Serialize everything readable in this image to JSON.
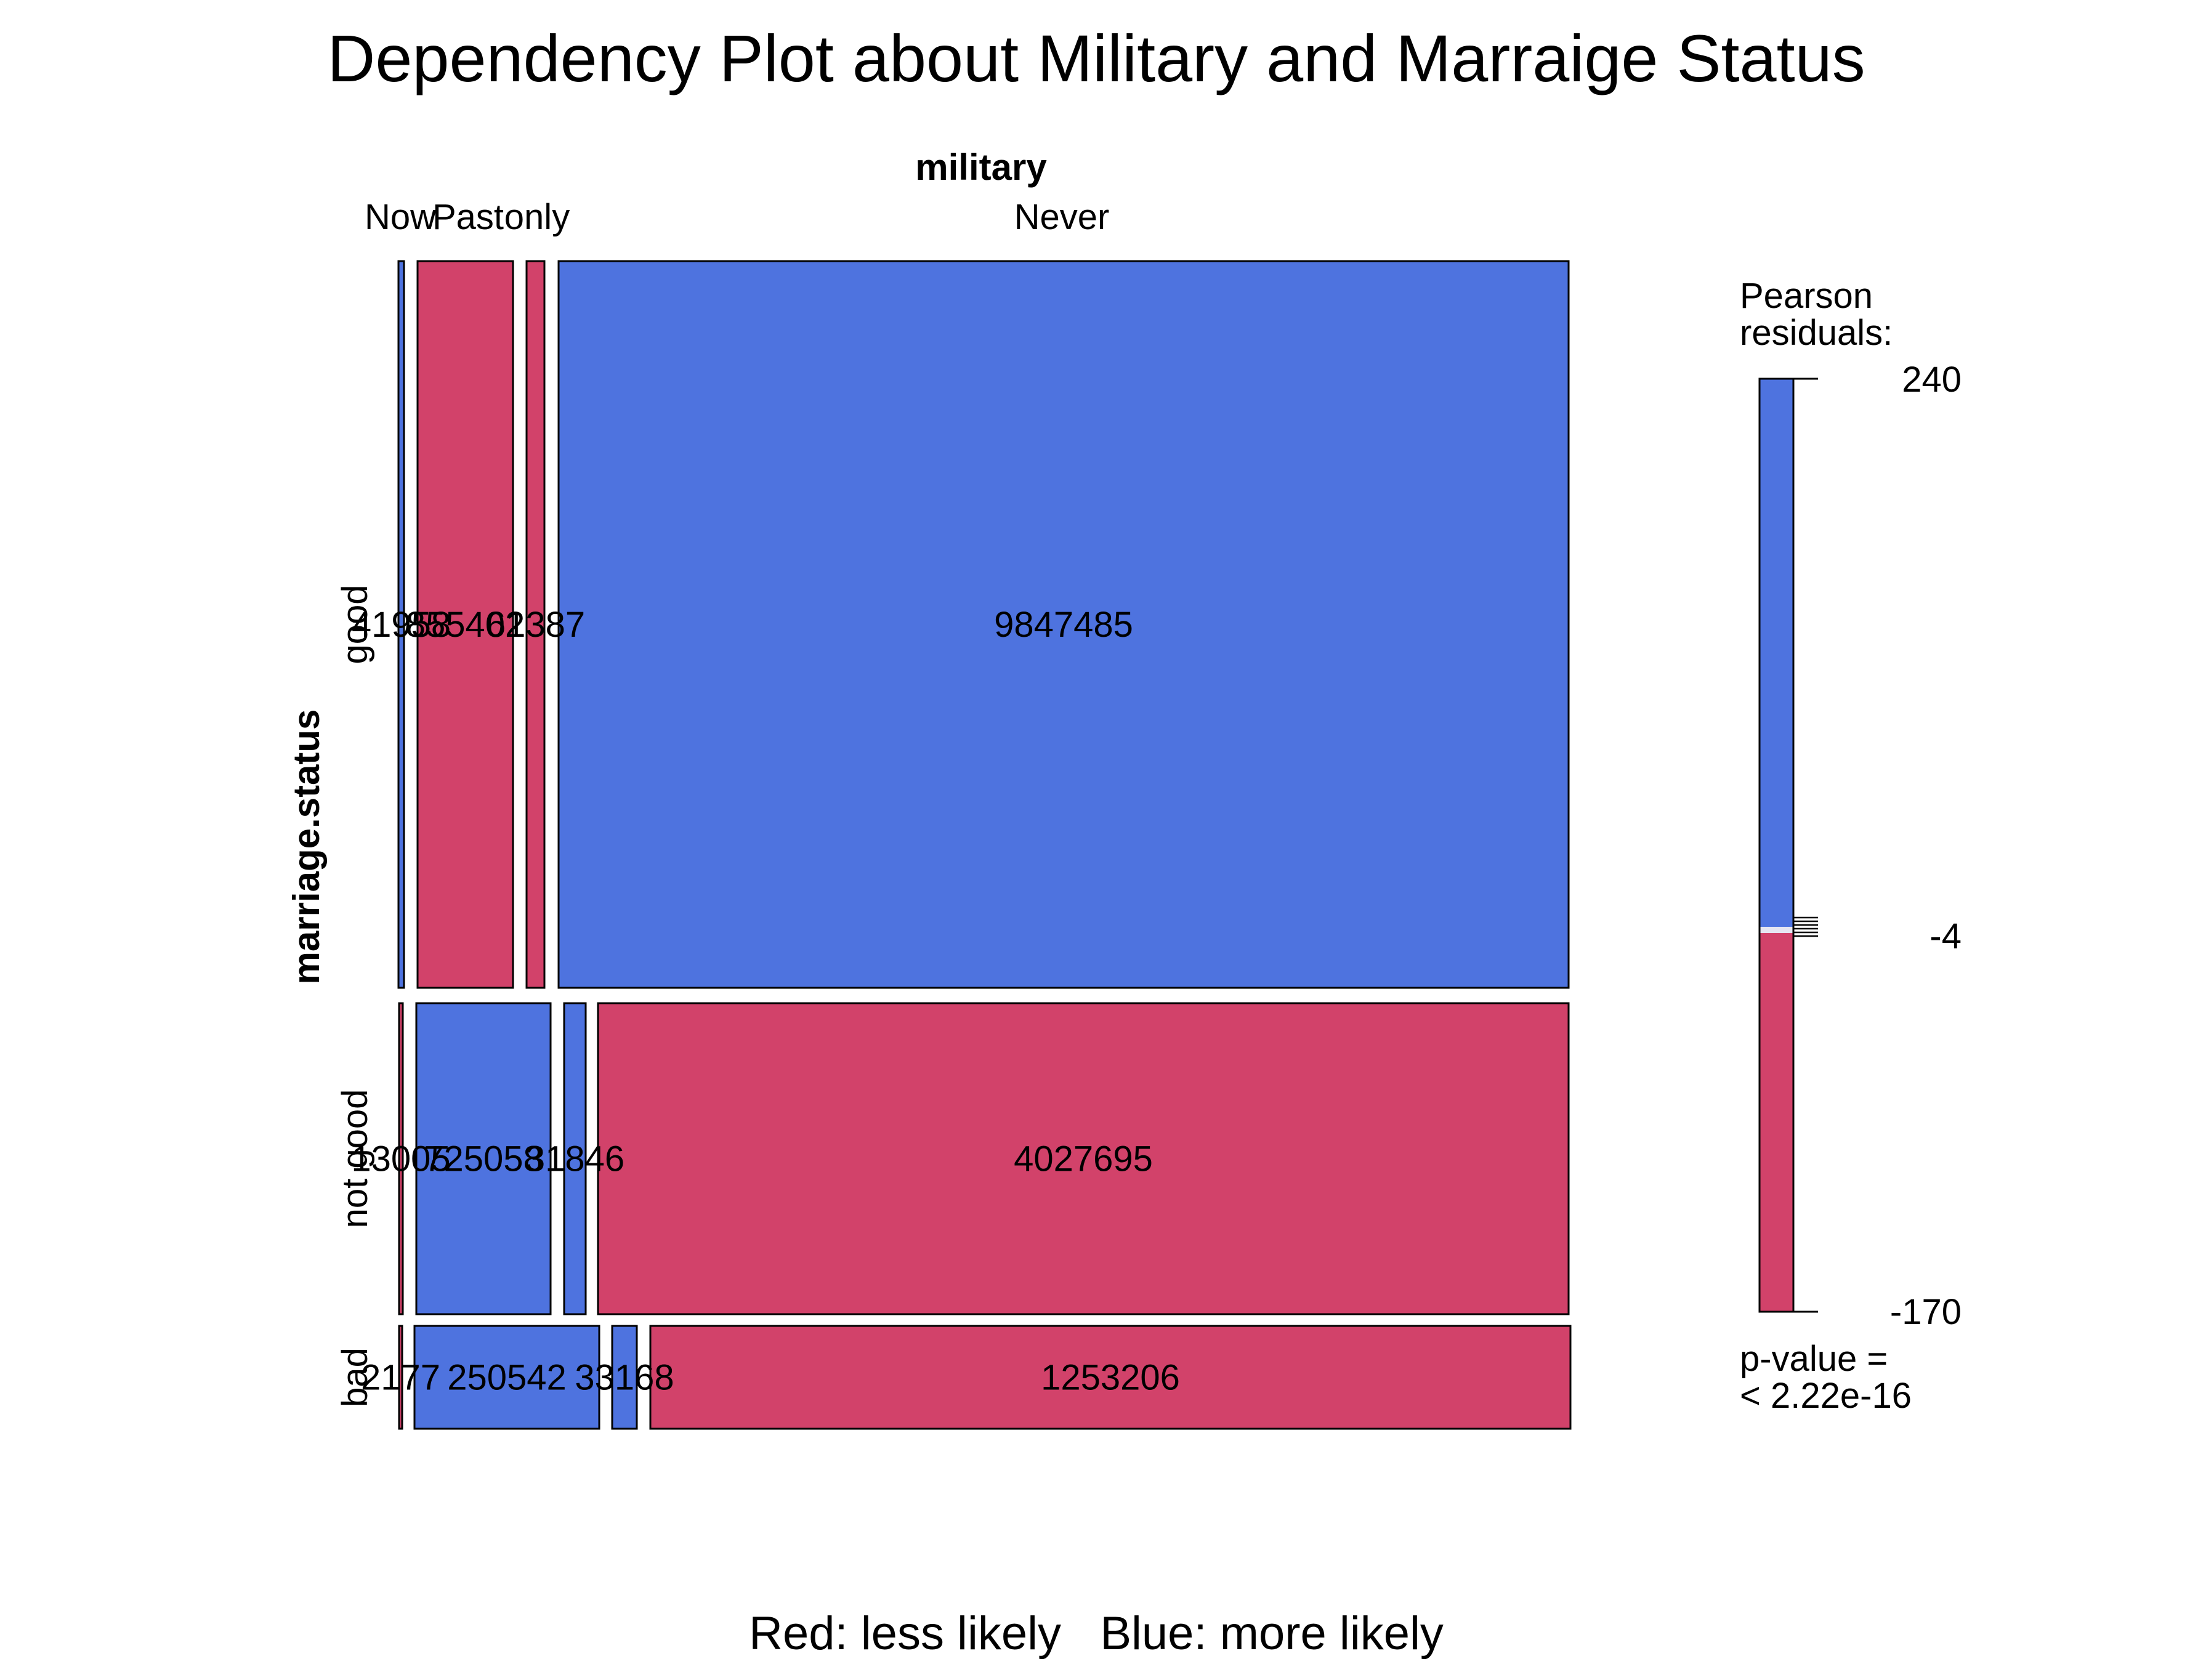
{
  "chart_data": {
    "type": "mosaic",
    "title": "Dependency Plot about Military and Marraige Status",
    "column_variable": "military",
    "row_variable": "marriage.status",
    "column_levels": [
      "Now",
      "Past",
      "only",
      "Never"
    ],
    "row_levels": [
      "good",
      "not good",
      "bad"
    ],
    "cells": [
      {
        "row": "good",
        "col": "Now",
        "count": "41958",
        "label": "41958",
        "residual_sign": "positive"
      },
      {
        "row": "good",
        "col": "Past",
        "count": "855402",
        "label": "855402",
        "residual_sign": "negative"
      },
      {
        "row": "good",
        "col": "only",
        "count": "61387",
        "label": "61387",
        "residual_sign": "negative"
      },
      {
        "row": "good",
        "col": "Never",
        "count": "9847485",
        "label": "9847485",
        "residual_sign": "positive"
      },
      {
        "row": "not good",
        "col": "Now",
        "count": "13005",
        "label": "13005",
        "residual_sign": "negative"
      },
      {
        "row": "not good",
        "col": "Past",
        "count": "725058",
        "label": "725058",
        "residual_sign": "positive"
      },
      {
        "row": "not good",
        "col": "only",
        "count": "31846",
        "label": "31846",
        "residual_sign": "positive"
      },
      {
        "row": "not good",
        "col": "Never",
        "count": "4027695",
        "label": "4027695",
        "residual_sign": "negative"
      },
      {
        "row": "bad",
        "col": "Now",
        "count": "2177",
        "label": "2177",
        "residual_sign": "negative"
      },
      {
        "row": "bad",
        "col": "Past",
        "count": "250542",
        "label": "250542",
        "residual_sign": "positive"
      },
      {
        "row": "bad",
        "col": "only",
        "count": "33168",
        "label": "33168",
        "residual_sign": "positive"
      },
      {
        "row": "bad",
        "col": "Never",
        "count": "1253206",
        "label": "1253206",
        "residual_sign": "negative"
      }
    ],
    "legend": {
      "title_line1": "Pearson",
      "title_line2": "residuals:",
      "max_label": "240",
      "mid_label": "-4",
      "min_label": "-170",
      "max_value": 240,
      "mid_value": -4,
      "min_value": -170,
      "pvalue_line1": "p-value =",
      "pvalue_line2": "< 2.22e-16"
    },
    "colors": {
      "positive": "#4E73DF",
      "negative": "#D2426A",
      "border": "#000000"
    },
    "footer": "Red: less likely   Blue: more likely"
  }
}
